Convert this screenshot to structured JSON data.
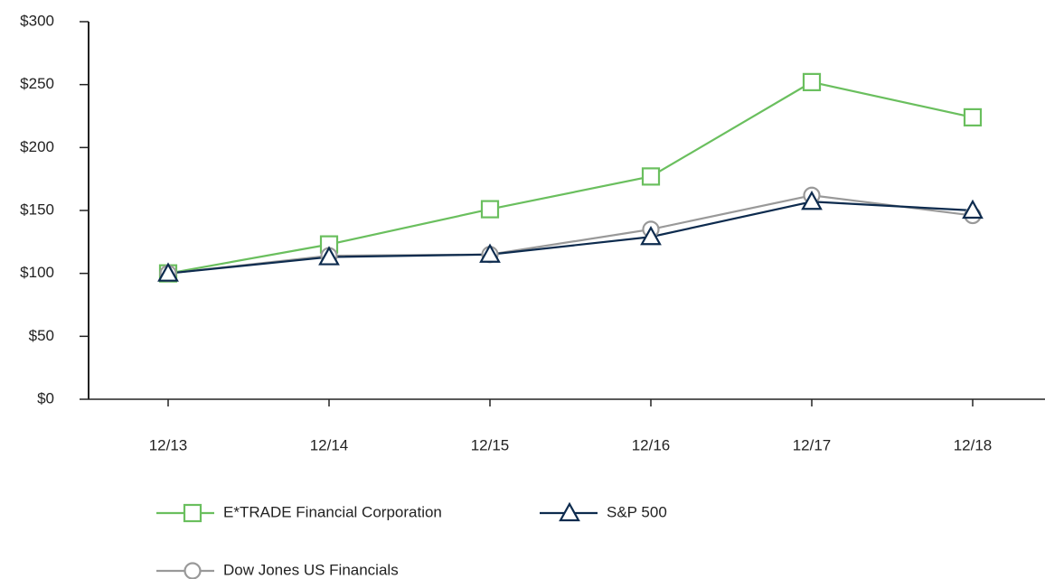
{
  "chart_data": {
    "type": "line",
    "categories": [
      "12/13",
      "12/14",
      "12/15",
      "12/16",
      "12/17",
      "12/18"
    ],
    "series": [
      {
        "name": "E*TRADE Financial Corporation",
        "color": "#6abf5e",
        "marker": "square",
        "values": [
          100,
          123,
          151,
          177,
          252,
          224
        ]
      },
      {
        "name": "S&P 500",
        "color": "#0d2b4e",
        "marker": "triangle",
        "values": [
          100,
          113,
          115,
          129,
          157,
          150
        ]
      },
      {
        "name": "Dow Jones US Financials",
        "color": "#999999",
        "marker": "circle",
        "values": [
          100,
          114,
          115,
          135,
          162,
          146
        ]
      }
    ],
    "ylim": [
      0,
      300
    ],
    "yticks": [
      {
        "value": 0,
        "label": "$0"
      },
      {
        "value": 50,
        "label": "$50"
      },
      {
        "value": 100,
        "label": "$100"
      },
      {
        "value": 150,
        "label": "$150"
      },
      {
        "value": 200,
        "label": "$200"
      },
      {
        "value": 250,
        "label": "$250"
      },
      {
        "value": 300,
        "label": "$300"
      }
    ],
    "grid": false,
    "legend": "bottom"
  }
}
